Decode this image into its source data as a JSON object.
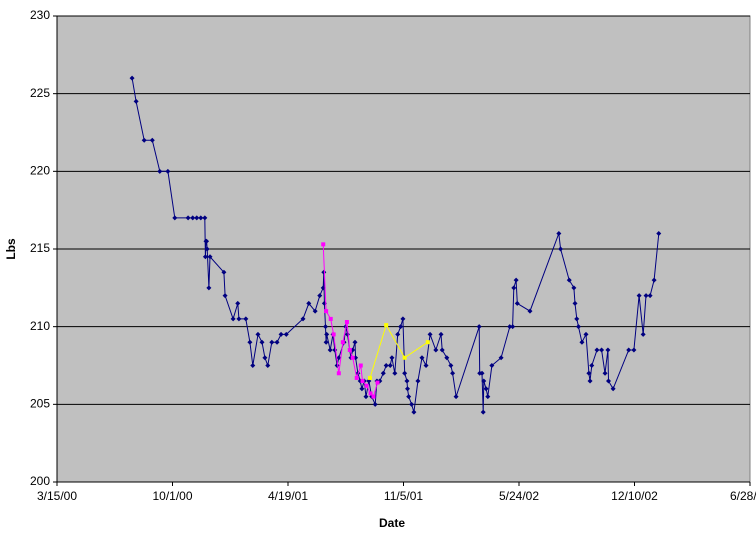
{
  "chart_data": {
    "type": "line",
    "y_label": "Lbs",
    "x_label": "Date",
    "xlim": [
      "3/15/00",
      "6/28/03"
    ],
    "xticks": [
      "3/15/00",
      "10/1/00",
      "4/19/01",
      "11/5/01",
      "5/24/02",
      "12/10/02",
      "6/28/03"
    ],
    "ylim": [
      200,
      230
    ],
    "yticks": [
      200,
      205,
      210,
      215,
      220,
      225,
      230
    ],
    "grid": true,
    "series": [
      {
        "color": "#000080",
        "marker": "diamond",
        "x": [
          "7/23/00",
          "7/30/00",
          "8/13/00",
          "8/27/00",
          "9/9/00",
          "9/23/00",
          "10/5/00",
          "10/28/00",
          "11/5/00",
          "11/12/00",
          "11/19/00",
          "11/26/00",
          "11/27/00",
          "11/28/00",
          "11/29/00",
          "11/30/00",
          "12/3/00",
          "12/5/00",
          "12/29/00",
          "12/31/00",
          "1/14/01",
          "1/22/01",
          "1/24/01",
          "2/5/01",
          "2/12/01",
          "2/17/01",
          "2/26/01",
          "3/5/01",
          "3/10/01",
          "3/15/01",
          "3/22/01",
          "3/31/01",
          "4/7/01",
          "4/16/01",
          "5/15/01",
          "5/25/01",
          "6/5/01",
          "6/13/01",
          "6/19/01",
          "6/20/01",
          "6/21/01",
          "6/23/01",
          "6/24/01",
          "6/25/01",
          "7/1/01",
          "7/6/01",
          "7/9/01",
          "7/13/01",
          "7/16/01",
          "7/25/01",
          "7/28/01",
          "7/31/01",
          "8/6/01",
          "8/9/01",
          "8/13/01",
          "8/14/01",
          "8/18/01",
          "8/22/01",
          "8/25/01",
          "8/29/01",
          "9/1/01",
          "9/6/01",
          "9/11/01",
          "9/17/01",
          "9/20/01",
          "9/25/01",
          "10/1/01",
          "10/6/01",
          "10/13/01",
          "10/16/01",
          "10/21/01",
          "10/26/01",
          "10/31/01",
          "11/4/01",
          "11/7/01",
          "11/11/01",
          "11/12/01",
          "11/14/01",
          "11/19/01",
          "11/23/01",
          "11/30/01",
          "12/7/01",
          "12/14/01",
          "12/21/01",
          "12/31/01",
          "1/9/02",
          "1/11/02",
          "1/19/02",
          "1/26/02",
          "1/29/02",
          "2/4/02",
          "3/16/02",
          "3/17/02",
          "3/21/02",
          "3/23/02",
          "3/24/02",
          "3/28/02",
          "3/31/02",
          "4/7/02",
          "4/23/02",
          "5/8/02",
          "5/13/02",
          "5/15/02",
          "5/19/02",
          "5/21/02",
          "6/12/02",
          "8/1/02",
          "8/4/02",
          "8/19/02",
          "8/27/02",
          "8/29/02",
          "9/1/02",
          "9/4/02",
          "9/10/02",
          "9/17/02",
          "9/22/02",
          "9/24/02",
          "9/27/02",
          "10/6/02",
          "10/14/02",
          "10/20/02",
          "10/25/02",
          "10/26/02",
          "11/3/02",
          "11/30/02",
          "12/9/02",
          "12/18/02",
          "12/25/02",
          "12/30/02",
          "1/6/03",
          "1/13/03",
          "1/21/03"
        ],
        "values": [
          226,
          224.5,
          222,
          222,
          220,
          220,
          217,
          217,
          217,
          217,
          217,
          217,
          214.5,
          215.5,
          215.5,
          215,
          212.5,
          214.5,
          213.5,
          212,
          210.5,
          211.5,
          210.5,
          210.5,
          209,
          207.5,
          209.5,
          209,
          208,
          207.5,
          209,
          209,
          209.5,
          209.5,
          210.5,
          211.5,
          211,
          212,
          212.5,
          213.5,
          211.5,
          210,
          209,
          209.5,
          208.5,
          209.5,
          208.5,
          207.5,
          208,
          209,
          210,
          209.5,
          208,
          208.5,
          209,
          208,
          207,
          206.5,
          206,
          206.5,
          205.5,
          206.5,
          205.5,
          205,
          206.5,
          206.5,
          207,
          207.5,
          207.5,
          208,
          207,
          209.5,
          210,
          210.5,
          207,
          206.5,
          206,
          205.5,
          205,
          204.5,
          206.5,
          208,
          207.5,
          209.5,
          208.5,
          209.5,
          208.5,
          208,
          207.5,
          207,
          205.5,
          210,
          207,
          207,
          204.5,
          206.5,
          206,
          205.5,
          207.5,
          208,
          210,
          210,
          212.5,
          213,
          211.5,
          211,
          216,
          215,
          213,
          212.5,
          211.5,
          210.5,
          210,
          209,
          209.5,
          207,
          206.5,
          207.5,
          208.5,
          208.5,
          207,
          208.5,
          206.5,
          206,
          208.5,
          208.5,
          212,
          209.5,
          212,
          212,
          213,
          216
        ]
      },
      {
        "color": "#ff00ff",
        "marker": "square",
        "x": [
          "6/19/01",
          "6/24/01",
          "7/2/01",
          "7/7/01",
          "7/16/01",
          "7/23/01",
          "7/30/01",
          "8/4/01",
          "8/9/01",
          "8/16/01",
          "8/23/01",
          "8/26/01",
          "9/2/01",
          "9/9/01",
          "9/14/01",
          "9/21/01"
        ],
        "values": [
          215.3,
          211,
          210.5,
          209.5,
          207,
          209,
          210.3,
          208.5,
          208,
          206.7,
          207.5,
          206.5,
          206.2,
          205.7,
          205.5,
          206.4
        ]
      },
      {
        "color": "#ffff00",
        "marker": "square",
        "x": [
          "9/8/01",
          "10/6/01",
          "11/7/01",
          "12/17/01"
        ],
        "values": [
          206.7,
          210.1,
          208,
          209
        ]
      }
    ]
  }
}
